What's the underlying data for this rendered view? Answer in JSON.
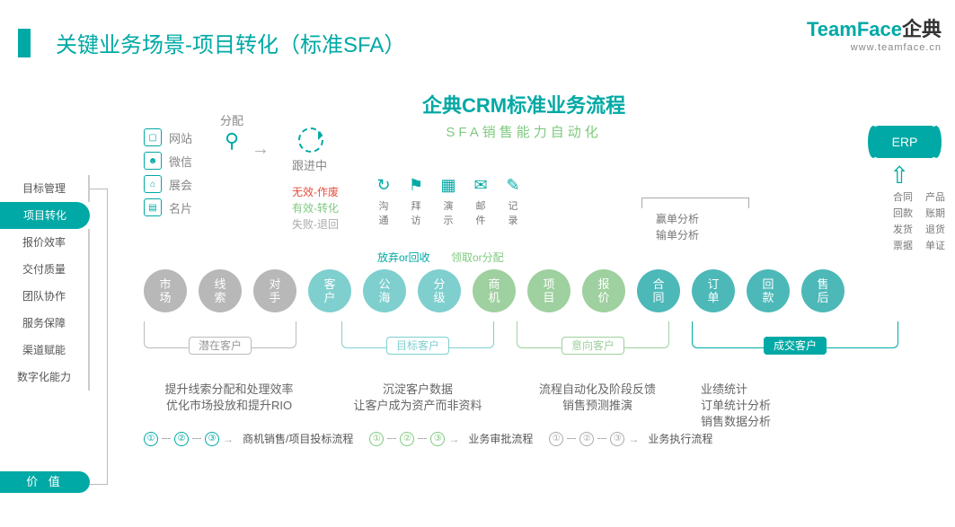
{
  "title": "关键业务场景-项目转化（标准SFA）",
  "logo": {
    "brand": "TeamFace",
    "cn": "企典",
    "url": "www.teamface.cn"
  },
  "sidebar": {
    "items": [
      "目标管理",
      "项目转化",
      "报价效率",
      "交付质量",
      "团队协作",
      "服务保障",
      "渠道赋能",
      "数字化能力"
    ],
    "active": 1
  },
  "value_pill": "价 值",
  "crm": {
    "main": "企典CRM标准业务流程",
    "sub": "SFA销售能力自动化"
  },
  "channels": [
    "网站",
    "微信",
    "展会",
    "名片"
  ],
  "alloc": "分配",
  "followup": "跟进中",
  "status": [
    "无效-作废",
    "有效-转化",
    "失败-退回"
  ],
  "actions": [
    [
      "沟",
      "通"
    ],
    [
      "拜",
      "访"
    ],
    [
      "演",
      "示"
    ],
    [
      "邮",
      "件"
    ],
    [
      "记",
      "录"
    ]
  ],
  "sublabels": [
    "放弃or回收",
    "领取or分配"
  ],
  "erp": {
    "label": "ERP",
    "grid": [
      [
        "合同",
        "产品"
      ],
      [
        "回款",
        "账期"
      ],
      [
        "发货",
        "退货"
      ],
      [
        "票据",
        "单证"
      ]
    ]
  },
  "analysis": [
    "赢单分析",
    "输单分析"
  ],
  "circles": [
    "市场",
    "线索",
    "对手",
    "客户",
    "公海",
    "分级",
    "商机",
    "项目",
    "报价",
    "合同",
    "订单",
    "回款",
    "售后"
  ],
  "circle_colors": [
    "c-gray",
    "c-gray",
    "c-gray",
    "c-teal",
    "c-teal",
    "c-teal",
    "c-green",
    "c-green",
    "c-green",
    "c-dteal",
    "c-dteal",
    "c-dteal",
    "c-dteal"
  ],
  "brackets": [
    "潜在客户",
    "目标客户",
    "意向客户",
    "成交客户"
  ],
  "descs": [
    "提升线索分配和处理效率\n优化市场投放和提升RIO",
    "沉淀客户数据\n让客户成为资产而非资料",
    "流程自动化及阶段反馈\n销售预测推演",
    "业绩统计\n订单统计分析\n销售数据分析"
  ],
  "flows": [
    {
      "nums": [
        "①",
        "②",
        "③"
      ],
      "color": "fn-teal",
      "label": "商机销售/项目投标流程"
    },
    {
      "nums": [
        "①",
        "②",
        "③"
      ],
      "color": "fn-green",
      "label": "业务审批流程"
    },
    {
      "nums": [
        "①",
        "②",
        "③"
      ],
      "color": "fn-gray",
      "label": "业务执行流程"
    }
  ]
}
